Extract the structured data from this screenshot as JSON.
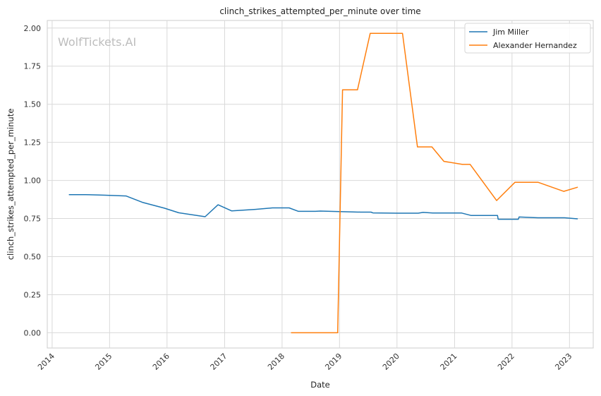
{
  "chart_data": {
    "type": "line",
    "title": "clinch_strikes_attempted_per_minute over time",
    "xlabel": "Date",
    "ylabel": "clinch_strikes_attempted_per_minute",
    "watermark": "WolfTickets.AI",
    "xlim": [
      "2013-12-01",
      "2023-06-01"
    ],
    "ylim": [
      -0.1,
      2.05
    ],
    "x_ticks": [
      "2014",
      "2015",
      "2016",
      "2017",
      "2018",
      "2019",
      "2020",
      "2021",
      "2022",
      "2023"
    ],
    "y_ticks": [
      "0.00",
      "0.25",
      "0.50",
      "0.75",
      "1.00",
      "1.25",
      "1.50",
      "1.75",
      "2.00"
    ],
    "grid": true,
    "legend_position": "top-right",
    "series": [
      {
        "name": "Jim Miller",
        "color": "#1f77b4",
        "points": [
          [
            "2014-04-20",
            0.907
          ],
          [
            "2014-08-01",
            0.907
          ],
          [
            "2014-12-01",
            0.903
          ],
          [
            "2015-04-15",
            0.898
          ],
          [
            "2015-08-01",
            0.855
          ],
          [
            "2015-12-15",
            0.818
          ],
          [
            "2016-03-15",
            0.788
          ],
          [
            "2016-08-30",
            0.762
          ],
          [
            "2016-11-20",
            0.84
          ],
          [
            "2017-02-15",
            0.8
          ],
          [
            "2017-07-15",
            0.81
          ],
          [
            "2017-11-01",
            0.82
          ],
          [
            "2018-02-15",
            0.82
          ],
          [
            "2018-04-15",
            0.797
          ],
          [
            "2018-08-01",
            0.797
          ],
          [
            "2018-09-01",
            0.799
          ],
          [
            "2019-01-01",
            0.795
          ],
          [
            "2019-05-15",
            0.792
          ],
          [
            "2019-07-20",
            0.792
          ],
          [
            "2019-08-01",
            0.787
          ],
          [
            "2020-01-01",
            0.785
          ],
          [
            "2020-05-15",
            0.785
          ],
          [
            "2020-06-15",
            0.79
          ],
          [
            "2020-08-15",
            0.786
          ],
          [
            "2021-02-15",
            0.786
          ],
          [
            "2021-04-15",
            0.77
          ],
          [
            "2021-10-01",
            0.77
          ],
          [
            "2021-10-05",
            0.745
          ],
          [
            "2022-02-10",
            0.745
          ],
          [
            "2022-02-15",
            0.76
          ],
          [
            "2022-06-15",
            0.755
          ],
          [
            "2022-12-01",
            0.755
          ],
          [
            "2023-02-20",
            0.748
          ]
        ]
      },
      {
        "name": "Alexander Hernandez",
        "color": "#ff7f0e",
        "points": [
          [
            "2018-03-01",
            0.0
          ],
          [
            "2018-12-20",
            0.0
          ],
          [
            "2019-01-20",
            1.595
          ],
          [
            "2019-04-25",
            1.595
          ],
          [
            "2019-07-15",
            1.965
          ],
          [
            "2020-02-05",
            1.965
          ],
          [
            "2020-05-10",
            1.22
          ],
          [
            "2020-08-10",
            1.22
          ],
          [
            "2020-10-25",
            1.125
          ],
          [
            "2021-02-20",
            1.105
          ],
          [
            "2021-04-10",
            1.105
          ],
          [
            "2021-09-25",
            0.868
          ],
          [
            "2022-01-20",
            0.988
          ],
          [
            "2022-06-15",
            0.988
          ],
          [
            "2022-11-25",
            0.928
          ],
          [
            "2023-02-20",
            0.955
          ]
        ]
      }
    ]
  }
}
